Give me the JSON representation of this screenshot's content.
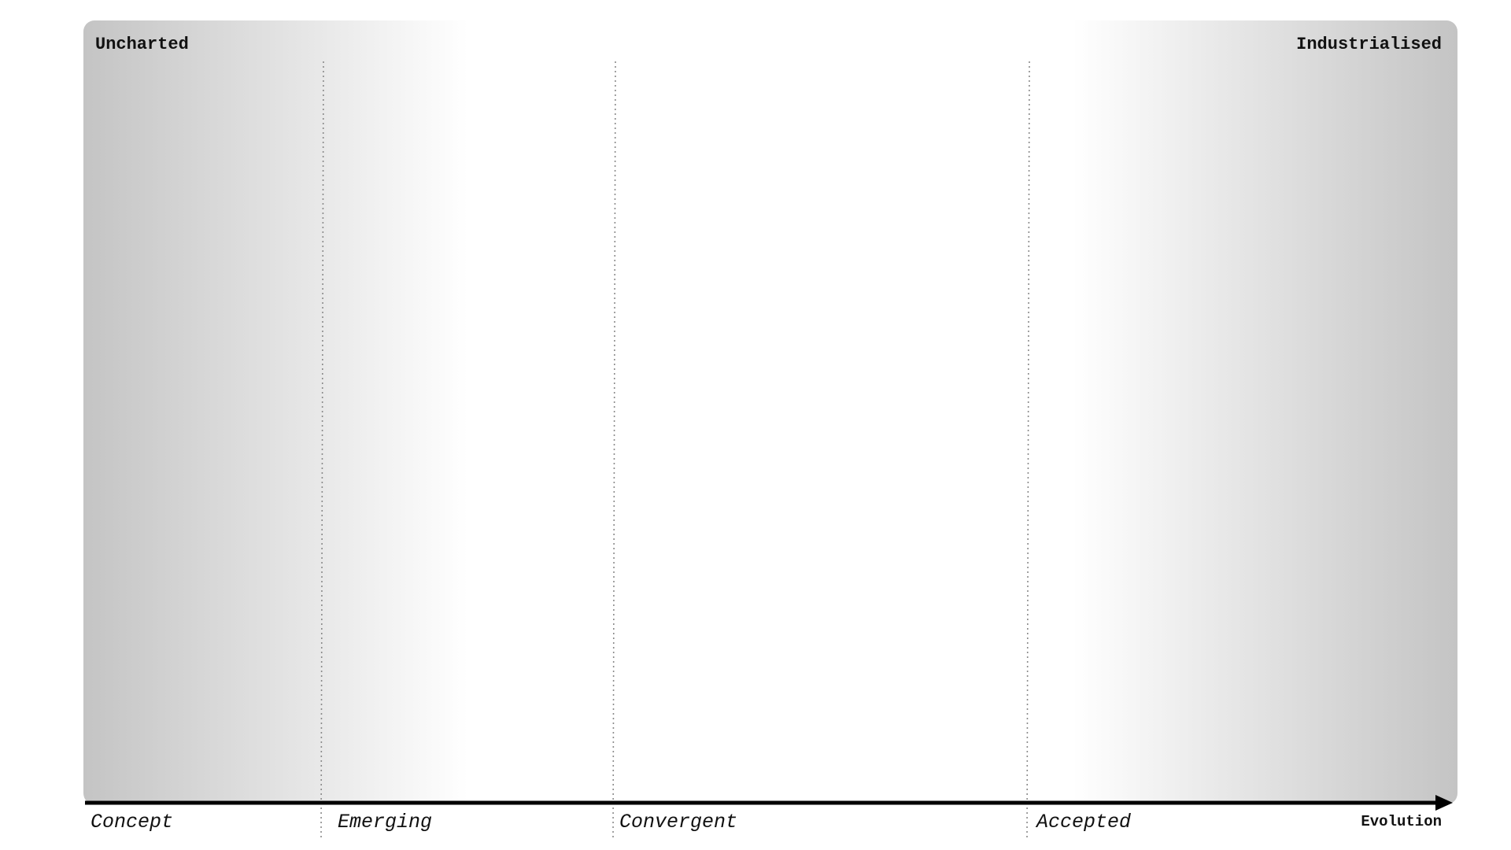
{
  "map": {
    "uncharted_label": "Uncharted",
    "industrialised_label": "Industrialised",
    "axis_title": "Evolution",
    "stages": [
      {
        "label": "Concept"
      },
      {
        "label": "Emerging"
      },
      {
        "label": "Convergent"
      },
      {
        "label": "Accepted"
      }
    ]
  },
  "colors": {
    "background": "#ffffff",
    "gradient_edge": "#c4c4c4",
    "gradient_fade": "#ffffff",
    "axis": "#000000",
    "divider": "#8a8a8a",
    "text": "#111111"
  }
}
